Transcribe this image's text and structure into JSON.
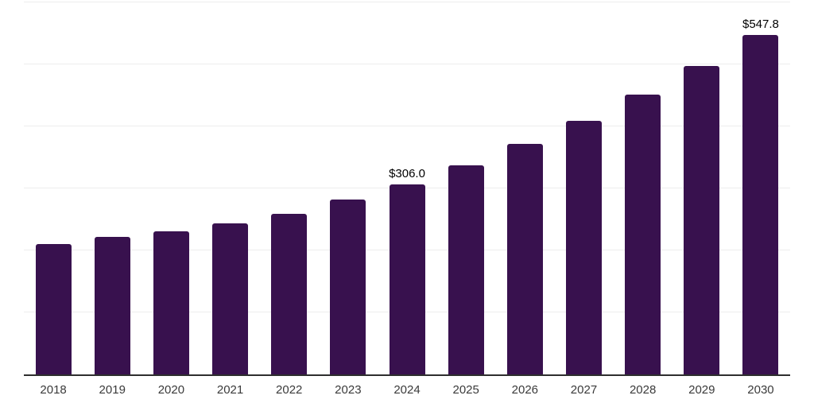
{
  "chart_data": {
    "type": "bar",
    "title": "",
    "xlabel": "",
    "ylabel": "",
    "categories": [
      "2018",
      "2019",
      "2020",
      "2021",
      "2022",
      "2023",
      "2024",
      "2025",
      "2026",
      "2027",
      "2028",
      "2029",
      "2030"
    ],
    "values": [
      210.0,
      222.0,
      230.5,
      243.0,
      259.0,
      281.5,
      306.0,
      337.2,
      371.5,
      409.4,
      451.1,
      497.0,
      547.8
    ],
    "data_labels": [
      "",
      "",
      "",
      "",
      "",
      "",
      "$306.0",
      "",
      "",
      "",
      "",
      "",
      "$547.8"
    ],
    "ylim": [
      0,
      600
    ],
    "gridline_step": 100,
    "grid": true,
    "legend": "none",
    "colors": {
      "bar": "#38114E",
      "gridline": "#ededed",
      "axis_line": "#2e2e2e",
      "tick_label": "#3a3a3a",
      "data_label": "#000000",
      "background": "#ffffff"
    }
  }
}
